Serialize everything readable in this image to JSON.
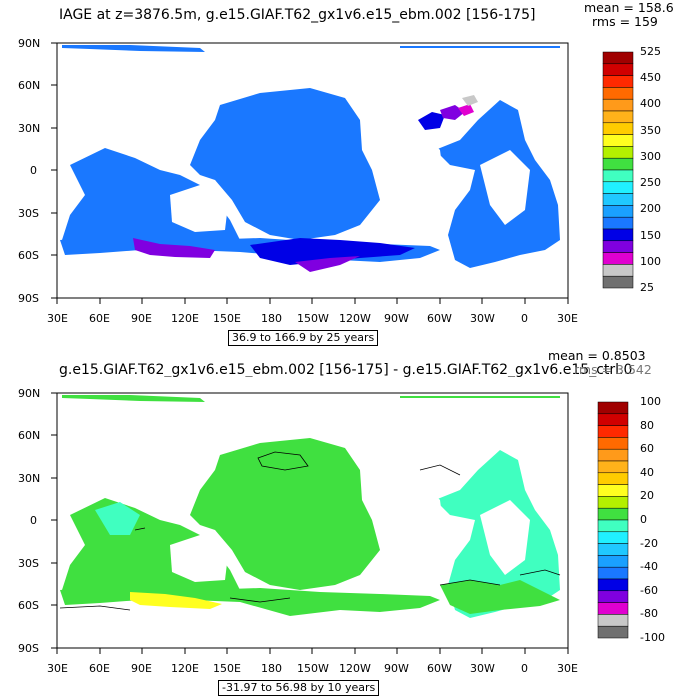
{
  "top_panel": {
    "title": "IAGE at z=3876.5m, g.e15.GIAF.T62_gx1v6.e15_ebm.002 [156-175]",
    "mean": "mean = 158.6",
    "rms": "rms = 159",
    "range": "36.9 to 166.9 by 25 years",
    "lat_labels": [
      "90N",
      "60N",
      "30N",
      "0",
      "30S",
      "60S",
      "90S"
    ],
    "lon_labels": [
      "30E",
      "60E",
      "90E",
      "120E",
      "150E",
      "180",
      "150W",
      "120W",
      "90W",
      "60W",
      "30W",
      "0",
      "30E"
    ],
    "colorbar_labels": [
      "525",
      "450",
      "400",
      "350",
      "300",
      "250",
      "200",
      "150",
      "100",
      "25"
    ],
    "colorbar_colors": [
      "#a00000",
      "#d00000",
      "#ff2a00",
      "#ff6a00",
      "#ff9a1a",
      "#ffb21a",
      "#ffcc00",
      "#ffff20",
      "#b4f000",
      "#40e040",
      "#40ffc0",
      "#20f0ff",
      "#20c8ff",
      "#1aa0ff",
      "#1a78ff",
      "#0000e6",
      "#8000e0",
      "#e000d0",
      "#c8c8c8",
      "#707070"
    ]
  },
  "bottom_panel": {
    "title": "g.e15.GIAF.T62_gx1v6.e15_ebm.002 [156-175] - g.e15.GIAF.T62_gx1v6.e15_ctrl.0",
    "mean": "mean = 0.8503",
    "rms": "rms = 3.542",
    "range": "-31.97 to 56.98 by 10 years",
    "lat_labels": [
      "90N",
      "60N",
      "30N",
      "0",
      "30S",
      "60S",
      "90S"
    ],
    "lon_labels": [
      "30E",
      "60E",
      "90E",
      "120E",
      "150E",
      "180",
      "150W",
      "120W",
      "90W",
      "60W",
      "30W",
      "0",
      "30E"
    ],
    "colorbar_labels": [
      "100",
      "80",
      "60",
      "40",
      "20",
      "0",
      "-20",
      "-40",
      "-60",
      "-80",
      "-100"
    ],
    "colorbar_colors": [
      "#a00000",
      "#d00000",
      "#ff2a00",
      "#ff6a00",
      "#ff9a1a",
      "#ffb21a",
      "#ffcc00",
      "#ffff20",
      "#b4f000",
      "#40e040",
      "#40ffc0",
      "#20f0ff",
      "#20c8ff",
      "#1aa0ff",
      "#1a78ff",
      "#0000e6",
      "#8000e0",
      "#e000d0",
      "#c8c8c8",
      "#707070"
    ]
  }
}
